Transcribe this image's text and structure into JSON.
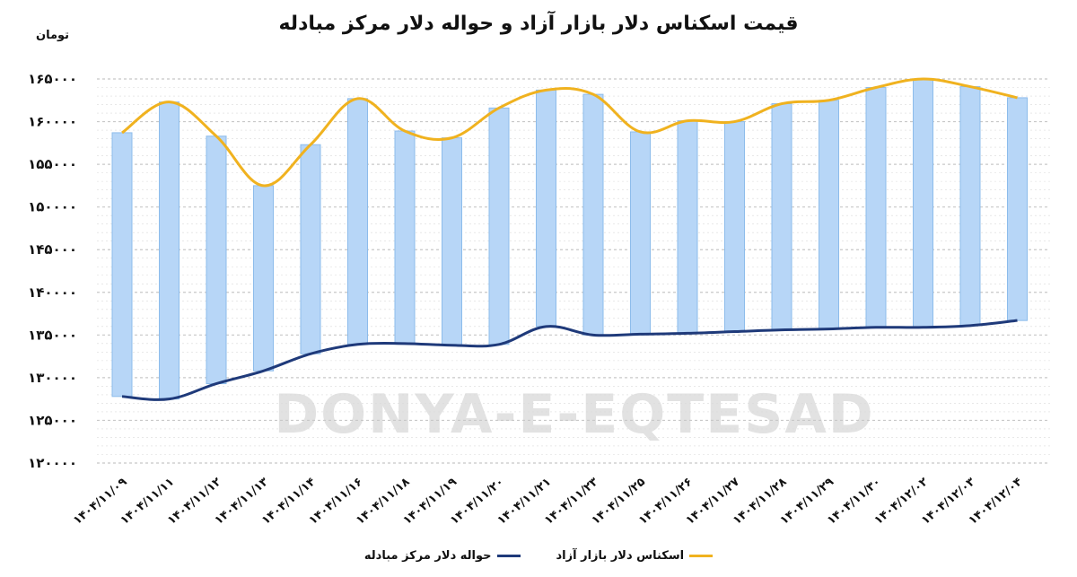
{
  "title": "قیمت اسکناس دلار بازار آزاد و حواله دلار مرکز مبادله",
  "unit_label": "تومان",
  "watermark": "DONYA-E-EQTESAD",
  "colors": {
    "free_market": "#F0B21F",
    "exchange_center": "#1F3A7A",
    "bar_fill": "#B7D6F7",
    "bar_stroke": "#8DBCEB",
    "grid": "#DADADA"
  },
  "chart_data": {
    "type": "line",
    "ylim": [
      120000,
      165000
    ],
    "yticks": [
      "۱۲۰۰۰۰",
      "۱۲۵۰۰۰",
      "۱۳۰۰۰۰",
      "۱۳۵۰۰۰",
      "۱۴۰۰۰۰",
      "۱۴۵۰۰۰",
      "۱۵۰۰۰۰",
      "۱۵۵۰۰۰",
      "۱۶۰۰۰۰",
      "۱۶۵۰۰۰"
    ],
    "ytick_values": [
      120000,
      125000,
      130000,
      135000,
      140000,
      145000,
      150000,
      155000,
      160000,
      165000
    ],
    "categories": [
      "۱۴۰۴/۱۱/۰۹",
      "۱۴۰۴/۱۱/۱۱",
      "۱۴۰۴/۱۱/۱۲",
      "۱۴۰۴/۱۱/۱۳",
      "۱۴۰۴/۱۱/۱۴",
      "۱۴۰۴/۱۱/۱۶",
      "۱۴۰۴/۱۱/۱۸",
      "۱۴۰۴/۱۱/۱۹",
      "۱۴۰۴/۱۱/۲۰",
      "۱۴۰۴/۱۱/۲۱",
      "۱۴۰۴/۱۱/۲۳",
      "۱۴۰۴/۱۱/۲۵",
      "۱۴۰۴/۱۱/۲۶",
      "۱۴۰۴/۱۱/۲۷",
      "۱۴۰۴/۱۱/۲۸",
      "۱۴۰۴/۱۱/۲۹",
      "۱۴۰۴/۱۱/۳۰",
      "۱۴۰۴/۱۲/۰۲",
      "۱۴۰۴/۱۲/۰۳",
      "۱۴۰۴/۱۲/۰۴"
    ],
    "series": [
      {
        "name": "اسکناس دلار بازار آزاد",
        "values": [
          158700,
          162300,
          158300,
          152500,
          157300,
          162700,
          158900,
          158100,
          161600,
          163700,
          163200,
          158800,
          160100,
          160000,
          162100,
          162500,
          164000,
          165000,
          164100,
          162800
        ]
      },
      {
        "name": "حواله دلار مرکز مبادله",
        "values": [
          127800,
          127500,
          129300,
          130800,
          132800,
          133900,
          134000,
          133800,
          133900,
          136000,
          135000,
          135100,
          135200,
          135400,
          135600,
          135700,
          135900,
          135900,
          136100,
          136700
        ]
      }
    ],
    "grid": true,
    "legend_position": "bottom"
  }
}
